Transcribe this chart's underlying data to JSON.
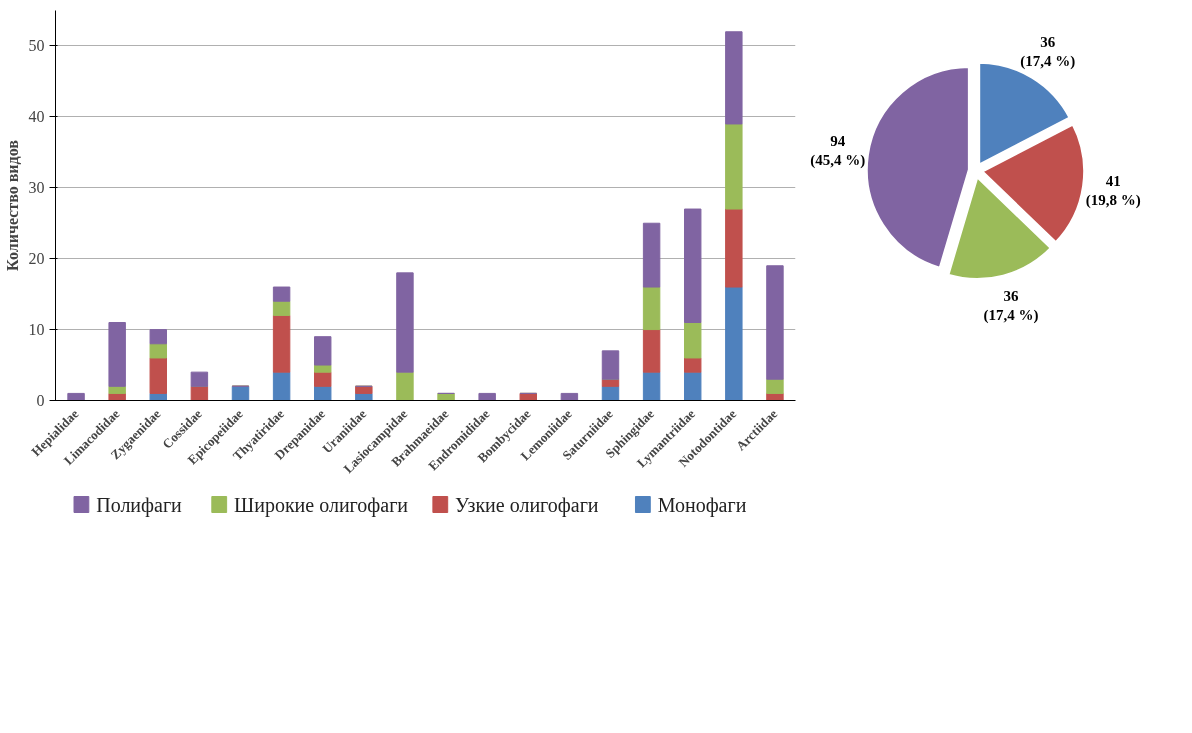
{
  "chart_data": [
    {
      "type": "bar",
      "stacked": true,
      "ylabel": "Количество видов",
      "categories": [
        "Hepialidae",
        "Limacodidae",
        "Zygaenidae",
        "Cossidae",
        "Epicopeiidae",
        "Thyatiridae",
        "Drepanidae",
        "Uraniidae",
        "Lasiocampidae",
        "Brahmaeidae",
        "Endromididae",
        "Bombycidae",
        "Lemoniidae",
        "Saturniidae",
        "Sphingidae",
        "Lymantriidae",
        "Notodontidae",
        "Arctiidae"
      ],
      "series": [
        {
          "name": "Монофаги",
          "color": "#4f81bd",
          "values": [
            0,
            0,
            1,
            0,
            2,
            4,
            2,
            1,
            0,
            0,
            0,
            0,
            0,
            2,
            4,
            4,
            16,
            0
          ]
        },
        {
          "name": "Узкие олигофаги",
          "color": "#c0504d",
          "values": [
            0,
            1,
            5,
            2,
            0,
            8,
            2,
            1,
            0,
            0,
            0,
            1,
            0,
            1,
            6,
            2,
            11,
            1
          ]
        },
        {
          "name": "Широкие олигофаги",
          "color": "#9bbb59",
          "values": [
            0,
            1,
            2,
            0,
            0,
            2,
            1,
            0,
            4,
            1,
            0,
            0,
            0,
            0,
            6,
            5,
            12,
            2
          ]
        },
        {
          "name": "Полифаги",
          "color": "#8064a2",
          "values": [
            1,
            9,
            2,
            2,
            0,
            2,
            4,
            0,
            14,
            0,
            1,
            0,
            1,
            4,
            9,
            16,
            13,
            16
          ]
        }
      ],
      "ylim": [
        0,
        55
      ],
      "yticks": [
        0,
        10,
        20,
        30,
        40,
        50
      ],
      "grid": "y",
      "legend": "bottom"
    },
    {
      "type": "pie",
      "categories": [
        null,
        null,
        null,
        null
      ],
      "values": [
        36,
        41,
        36,
        94
      ],
      "colors": [
        "#4f81bd",
        "#c0504d",
        "#9bbb59",
        "#8064a2"
      ],
      "value_labels": [
        "36\n(17,4 %)",
        "41\n(19,8 %)",
        "36\n(17,4 %)",
        "94\n(45,4 %)"
      ]
    }
  ]
}
